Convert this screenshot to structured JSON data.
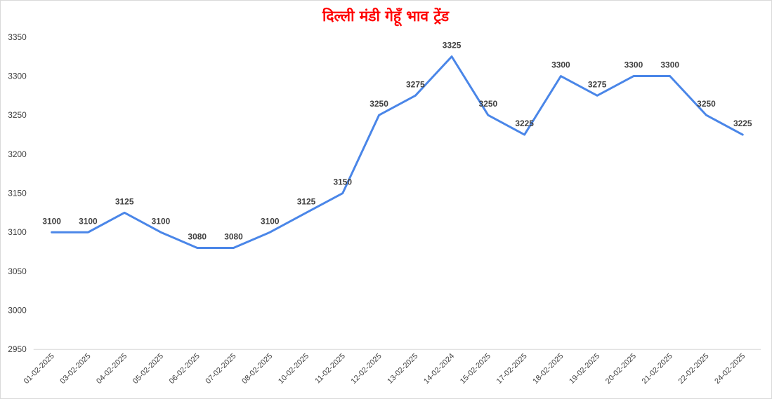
{
  "chart_data": {
    "type": "line",
    "title": "दिल्ली मंडी गेहूँ भाव ट्रेंड",
    "xlabel": "",
    "ylabel": "",
    "ylim": [
      2950,
      3350
    ],
    "yticks": [
      2950,
      3000,
      3050,
      3100,
      3150,
      3200,
      3250,
      3300,
      3350
    ],
    "grid": false,
    "legend": "none",
    "categories": [
      "01-02-2025",
      "03-02-2025",
      "04-02-2025",
      "05-02-2025",
      "06-02-2025",
      "07-02-2025",
      "08-02-2025",
      "10-02-2025",
      "11-02-2025",
      "12-02-2025",
      "13-02-2025",
      "14-02-2024",
      "15-02-2025",
      "17-02-2025",
      "18-02-2025",
      "19-02-2025",
      "20-02-2025",
      "21-02-2025",
      "22-02-2025",
      "24-02-2025"
    ],
    "series": [
      {
        "values": [
          3100,
          3100,
          3125,
          3100,
          3080,
          3080,
          3100,
          3125,
          3150,
          3250,
          3275,
          3325,
          3250,
          3225,
          3300,
          3275,
          3300,
          3300,
          3250,
          3225
        ],
        "color": "#4a86e8"
      }
    ],
    "colors": {
      "title": "#ff0000",
      "line": "#4a86e8",
      "axis": "#d9d9d9",
      "text": "#404040"
    }
  }
}
